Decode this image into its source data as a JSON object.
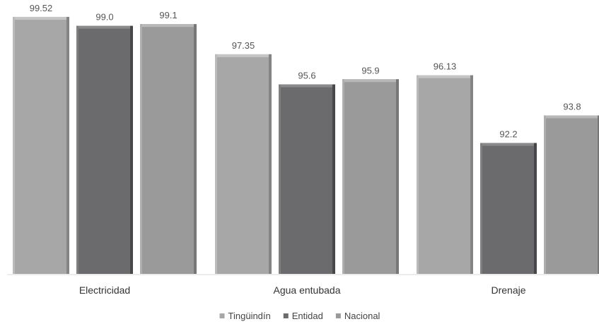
{
  "chart_data": {
    "type": "bar",
    "categories": [
      "Electricidad",
      "Agua entubada",
      "Drenaje"
    ],
    "series": [
      {
        "name": "Tingüindín",
        "values": [
          99.52,
          97.35,
          96.13
        ],
        "labels": [
          "99.52",
          "97.35",
          "96.13"
        ],
        "color": "#a7a7a7"
      },
      {
        "name": "Entidad",
        "values": [
          99.0,
          95.6,
          92.2
        ],
        "labels": [
          "99.0",
          "95.6",
          "92.2"
        ],
        "color": "#6b6b6d"
      },
      {
        "name": "Nacional",
        "values": [
          99.1,
          95.9,
          93.8
        ],
        "labels": [
          "99.1",
          "95.9",
          "93.8"
        ],
        "color": "#9a9a9a"
      }
    ],
    "legend": "bottom",
    "grid": false
  }
}
